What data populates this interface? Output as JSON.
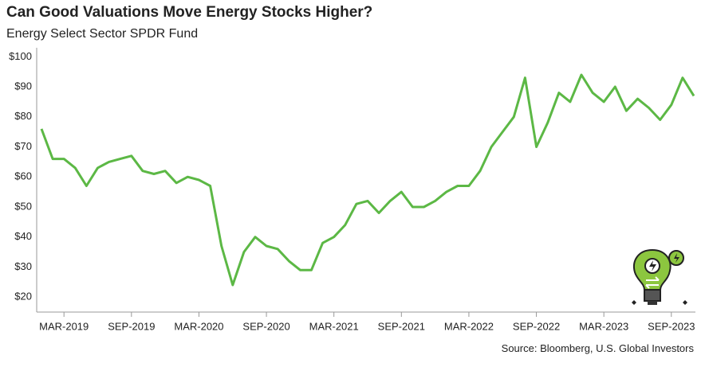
{
  "chart_data": {
    "type": "line",
    "title": "Can Good Valuations Move Energy Stocks Higher?",
    "subtitle": "Energy Select Sector SPDR Fund",
    "source": "Source: Bloomberg, U.S. Global Investors",
    "x": [
      "2019-01",
      "2019-02",
      "2019-03",
      "2019-04",
      "2019-05",
      "2019-06",
      "2019-07",
      "2019-08",
      "2019-09",
      "2019-10",
      "2019-11",
      "2019-12",
      "2020-01",
      "2020-02",
      "2020-03",
      "2020-04",
      "2020-05",
      "2020-06",
      "2020-07",
      "2020-08",
      "2020-09",
      "2020-10",
      "2020-11",
      "2020-12",
      "2021-01",
      "2021-02",
      "2021-03",
      "2021-04",
      "2021-05",
      "2021-06",
      "2021-07",
      "2021-08",
      "2021-09",
      "2021-10",
      "2021-11",
      "2021-12",
      "2022-01",
      "2022-02",
      "2022-03",
      "2022-04",
      "2022-05",
      "2022-06",
      "2022-07",
      "2022-08",
      "2022-09",
      "2022-10",
      "2022-11",
      "2022-12",
      "2023-01",
      "2023-02",
      "2023-03",
      "2023-04",
      "2023-05",
      "2023-06",
      "2023-07",
      "2023-08",
      "2023-09",
      "2023-10",
      "2023-11"
    ],
    "series": [
      {
        "name": "Energy Select Sector SPDR Fund",
        "color": "#5cb845",
        "values": [
          76,
          66,
          66,
          63,
          57,
          63,
          65,
          66,
          67,
          62,
          61,
          62,
          58,
          60,
          59,
          57,
          37,
          24,
          35,
          40,
          37,
          36,
          32,
          29,
          29,
          38,
          40,
          44,
          51,
          52,
          48,
          52,
          55,
          50,
          50,
          52,
          55,
          57,
          57,
          62,
          70,
          75,
          80,
          93,
          70,
          78,
          88,
          85,
          94,
          88,
          85,
          90,
          82,
          86,
          83,
          79,
          84,
          93,
          87
        ]
      }
    ],
    "xlim": [
      "2019-01",
      "2023-11"
    ],
    "xticks": [
      {
        "value": "2019-03",
        "label": "MAR-2019"
      },
      {
        "value": "2019-09",
        "label": "SEP-2019"
      },
      {
        "value": "2020-03",
        "label": "MAR-2020"
      },
      {
        "value": "2020-09",
        "label": "SEP-2020"
      },
      {
        "value": "2021-03",
        "label": "MAR-2021"
      },
      {
        "value": "2021-09",
        "label": "SEP-2021"
      },
      {
        "value": "2022-03",
        "label": "MAR-2022"
      },
      {
        "value": "2022-09",
        "label": "SEP-2022"
      },
      {
        "value": "2023-03",
        "label": "MAR-2023"
      },
      {
        "value": "2023-09",
        "label": "SEP-2023"
      }
    ],
    "ylim": [
      15,
      103
    ],
    "yticks": [
      {
        "value": 20,
        "label": "$20"
      },
      {
        "value": 30,
        "label": "$30"
      },
      {
        "value": 40,
        "label": "$40"
      },
      {
        "value": 50,
        "label": "$50"
      },
      {
        "value": 60,
        "label": "$60"
      },
      {
        "value": 70,
        "label": "$70"
      },
      {
        "value": 80,
        "label": "$80"
      },
      {
        "value": 90,
        "label": "$90"
      },
      {
        "value": 100,
        "label": "$100"
      }
    ],
    "grid": false
  }
}
